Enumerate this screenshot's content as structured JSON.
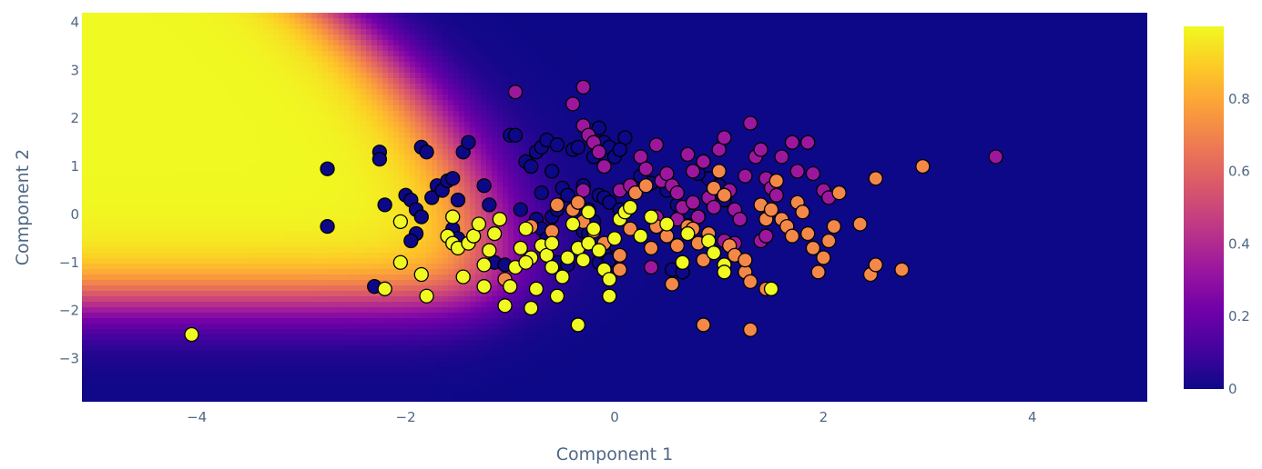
{
  "chart_data": {
    "type": "scatter",
    "title": "",
    "xlabel": "Component 1",
    "ylabel": "Component 2",
    "xlim": [
      -5.1,
      5.1
    ],
    "ylim": [
      -3.9,
      4.2
    ],
    "x_ticks": [
      "−4",
      "−2",
      "0",
      "2",
      "4"
    ],
    "y_ticks": [
      "−3",
      "−2",
      "−1",
      "0",
      "1",
      "2",
      "3",
      "4"
    ],
    "background": {
      "type": "heatmap",
      "description_of_values": "decision probability surface, high in the upper-left, low on the right and bottom",
      "colorscale": [
        "#0d0887",
        "#46039f",
        "#7201a8",
        "#9c179e",
        "#bd3786",
        "#d8576b",
        "#ed7953",
        "#fb9f3a",
        "#fdca26",
        "#f0f921"
      ]
    },
    "colorbar": {
      "range": [
        0,
        1
      ],
      "ticks": [
        "0",
        "0.2",
        "0.4",
        "0.6",
        "0.8"
      ]
    },
    "marker_colors": {
      "class_dark_blue": "#0d0887",
      "class_purple": "#9c179e",
      "class_orange": "#f48849",
      "class_yellow": "#f0f921"
    },
    "series": [
      {
        "class": "dark_blue",
        "color": "#0d0887",
        "points": [
          [
            -2.75,
            0.95
          ],
          [
            -2.75,
            -0.25
          ],
          [
            -2.25,
            1.3
          ],
          [
            -2.25,
            1.15
          ],
          [
            -2.2,
            0.2
          ],
          [
            -2.3,
            -1.5
          ],
          [
            -2.0,
            0.4
          ],
          [
            -1.95,
            0.3
          ],
          [
            -1.9,
            0.1
          ],
          [
            -1.85,
            -0.05
          ],
          [
            -1.9,
            -0.4
          ],
          [
            -1.95,
            -0.55
          ],
          [
            -1.85,
            1.4
          ],
          [
            -1.8,
            1.3
          ],
          [
            -1.7,
            0.6
          ],
          [
            -1.75,
            0.35
          ],
          [
            -1.65,
            0.5
          ],
          [
            -1.6,
            0.7
          ],
          [
            -1.55,
            0.75
          ],
          [
            -1.5,
            0.3
          ],
          [
            -1.45,
            1.3
          ],
          [
            -1.4,
            1.5
          ],
          [
            -1.55,
            -0.3
          ],
          [
            -1.5,
            -0.5
          ],
          [
            -1.25,
            0.6
          ],
          [
            -1.2,
            0.2
          ],
          [
            -1.15,
            -1.0
          ],
          [
            -1.05,
            -1.05
          ],
          [
            -1.0,
            1.65
          ],
          [
            -0.95,
            1.65
          ],
          [
            -0.9,
            0.1
          ],
          [
            -0.85,
            1.1
          ],
          [
            -0.8,
            1.0
          ],
          [
            -0.75,
            1.3
          ],
          [
            -0.7,
            1.4
          ],
          [
            -0.65,
            1.55
          ],
          [
            -0.6,
            0.9
          ],
          [
            -0.7,
            0.45
          ],
          [
            -0.75,
            -0.1
          ],
          [
            -0.7,
            -0.3
          ],
          [
            -0.65,
            -0.5
          ],
          [
            -0.55,
            1.45
          ],
          [
            -0.5,
            0.55
          ],
          [
            -0.45,
            0.4
          ],
          [
            -0.4,
            1.35
          ],
          [
            -0.35,
            1.4
          ],
          [
            -0.3,
            0.6
          ],
          [
            -0.25,
            0.1
          ],
          [
            -0.2,
            1.2
          ],
          [
            -0.15,
            1.8
          ],
          [
            -0.1,
            1.5
          ],
          [
            -0.05,
            1.4
          ],
          [
            0.0,
            1.2
          ],
          [
            -0.15,
            0.4
          ],
          [
            -0.1,
            0.35
          ],
          [
            -0.05,
            0.25
          ],
          [
            0.05,
            0.1
          ],
          [
            -0.3,
            -0.35
          ],
          [
            -0.25,
            -0.4
          ],
          [
            -0.2,
            -0.15
          ],
          [
            -0.15,
            -1.0
          ],
          [
            -0.1,
            -0.8
          ],
          [
            -0.35,
            -0.7
          ],
          [
            -0.55,
            -1.0
          ],
          [
            0.25,
            0.8
          ],
          [
            0.35,
            0.65
          ],
          [
            0.5,
            0.5
          ],
          [
            0.6,
            0.2
          ],
          [
            0.7,
            0.05
          ],
          [
            0.55,
            -1.15
          ],
          [
            0.65,
            -1.2
          ],
          [
            0.1,
            1.6
          ],
          [
            0.05,
            1.35
          ],
          [
            0.0,
            -0.9
          ],
          [
            -0.05,
            -0.95
          ],
          [
            -0.45,
            -1.05
          ],
          [
            -0.6,
            -0.05
          ],
          [
            -0.55,
            0.1
          ],
          [
            0.9,
            0.75
          ],
          [
            1.0,
            0.6
          ],
          [
            0.95,
            0.2
          ],
          [
            1.05,
            0.3
          ],
          [
            0.8,
            0.85
          ]
        ]
      },
      {
        "class": "purple",
        "color": "#9c179e",
        "points": [
          [
            -0.95,
            2.55
          ],
          [
            -0.4,
            2.3
          ],
          [
            -0.3,
            2.65
          ],
          [
            -0.3,
            1.85
          ],
          [
            -0.25,
            1.65
          ],
          [
            -0.2,
            1.5
          ],
          [
            -0.15,
            1.3
          ],
          [
            -0.1,
            1.0
          ],
          [
            0.05,
            0.5
          ],
          [
            0.15,
            0.6
          ],
          [
            0.25,
            1.2
          ],
          [
            0.3,
            0.95
          ],
          [
            0.4,
            1.45
          ],
          [
            0.45,
            0.7
          ],
          [
            0.5,
            0.85
          ],
          [
            0.55,
            0.6
          ],
          [
            0.6,
            0.45
          ],
          [
            0.7,
            1.25
          ],
          [
            0.75,
            0.9
          ],
          [
            0.85,
            1.1
          ],
          [
            0.9,
            0.35
          ],
          [
            0.95,
            0.15
          ],
          [
            1.0,
            1.35
          ],
          [
            1.05,
            1.6
          ],
          [
            1.1,
            0.5
          ],
          [
            1.15,
            0.1
          ],
          [
            1.2,
            -0.1
          ],
          [
            1.25,
            0.8
          ],
          [
            1.3,
            1.9
          ],
          [
            1.35,
            1.2
          ],
          [
            1.4,
            1.35
          ],
          [
            1.45,
            0.75
          ],
          [
            1.5,
            0.55
          ],
          [
            1.55,
            0.4
          ],
          [
            1.6,
            1.2
          ],
          [
            1.7,
            1.5
          ],
          [
            1.75,
            0.9
          ],
          [
            1.85,
            1.5
          ],
          [
            1.9,
            0.85
          ],
          [
            2.0,
            0.5
          ],
          [
            2.05,
            0.35
          ],
          [
            1.4,
            -0.55
          ],
          [
            1.45,
            -0.45
          ],
          [
            1.05,
            -0.55
          ],
          [
            0.35,
            -1.1
          ],
          [
            0.4,
            -0.05
          ],
          [
            0.6,
            -0.1
          ],
          [
            0.8,
            -0.05
          ],
          [
            3.65,
            1.2
          ],
          [
            -0.3,
            0.5
          ],
          [
            0.65,
            0.15
          ],
          [
            0.75,
            0.25
          ],
          [
            1.15,
            -0.6
          ]
        ]
      },
      {
        "class": "orange",
        "color": "#f48849",
        "points": [
          [
            -1.05,
            -1.35
          ],
          [
            -0.8,
            -0.25
          ],
          [
            -0.6,
            -0.35
          ],
          [
            -0.55,
            0.2
          ],
          [
            -0.4,
            0.1
          ],
          [
            -0.35,
            0.25
          ],
          [
            -0.3,
            -0.15
          ],
          [
            -0.2,
            -0.35
          ],
          [
            -0.1,
            -0.6
          ],
          [
            0.05,
            -0.85
          ],
          [
            0.05,
            -1.15
          ],
          [
            0.15,
            -0.3
          ],
          [
            0.2,
            0.45
          ],
          [
            0.35,
            -0.7
          ],
          [
            0.4,
            -0.25
          ],
          [
            0.5,
            -0.45
          ],
          [
            0.55,
            -1.45
          ],
          [
            0.6,
            -0.65
          ],
          [
            0.65,
            -1.0
          ],
          [
            0.7,
            -0.25
          ],
          [
            0.8,
            -0.6
          ],
          [
            0.85,
            -0.95
          ],
          [
            0.85,
            -2.3
          ],
          [
            0.9,
            -0.4
          ],
          [
            0.95,
            0.55
          ],
          [
            1.0,
            0.9
          ],
          [
            1.05,
            0.4
          ],
          [
            1.1,
            -0.65
          ],
          [
            1.15,
            -0.85
          ],
          [
            1.25,
            -1.2
          ],
          [
            1.3,
            -1.4
          ],
          [
            1.3,
            -2.4
          ],
          [
            1.4,
            0.2
          ],
          [
            1.45,
            -0.1
          ],
          [
            1.5,
            0.1
          ],
          [
            1.55,
            0.7
          ],
          [
            1.6,
            -0.1
          ],
          [
            1.65,
            -0.25
          ],
          [
            1.7,
            -0.45
          ],
          [
            1.75,
            0.25
          ],
          [
            1.8,
            0.05
          ],
          [
            1.85,
            -0.4
          ],
          [
            1.9,
            -0.7
          ],
          [
            1.95,
            -1.2
          ],
          [
            2.0,
            -0.9
          ],
          [
            2.05,
            -0.55
          ],
          [
            2.1,
            -0.25
          ],
          [
            2.15,
            0.45
          ],
          [
            2.35,
            -0.2
          ],
          [
            2.45,
            -1.25
          ],
          [
            2.5,
            -1.05
          ],
          [
            2.5,
            0.75
          ],
          [
            2.75,
            -1.15
          ],
          [
            2.95,
            1.0
          ],
          [
            1.45,
            -1.55
          ],
          [
            1.25,
            -0.95
          ],
          [
            0.75,
            -0.3
          ],
          [
            0.3,
            0.6
          ]
        ]
      },
      {
        "class": "yellow",
        "color": "#f0f921",
        "points": [
          [
            -4.05,
            -2.5
          ],
          [
            -2.2,
            -1.55
          ],
          [
            -2.05,
            -1.0
          ],
          [
            -2.05,
            -0.15
          ],
          [
            -1.85,
            -1.25
          ],
          [
            -1.8,
            -1.7
          ],
          [
            -1.6,
            -0.45
          ],
          [
            -1.55,
            -0.6
          ],
          [
            -1.5,
            -0.7
          ],
          [
            -1.55,
            -0.05
          ],
          [
            -1.45,
            -1.3
          ],
          [
            -1.4,
            -0.6
          ],
          [
            -1.35,
            -0.45
          ],
          [
            -1.3,
            -0.2
          ],
          [
            -1.25,
            -1.5
          ],
          [
            -1.25,
            -1.05
          ],
          [
            -1.2,
            -0.75
          ],
          [
            -1.15,
            -0.4
          ],
          [
            -1.1,
            -0.1
          ],
          [
            -1.05,
            -1.9
          ],
          [
            -1.0,
            -1.5
          ],
          [
            -0.95,
            -1.1
          ],
          [
            -0.9,
            -0.7
          ],
          [
            -0.85,
            -0.3
          ],
          [
            -0.8,
            -0.9
          ],
          [
            -0.8,
            -1.95
          ],
          [
            -0.75,
            -1.55
          ],
          [
            -0.7,
            -0.65
          ],
          [
            -0.65,
            -0.85
          ],
          [
            -0.6,
            -1.1
          ],
          [
            -0.55,
            -1.7
          ],
          [
            -0.5,
            -1.3
          ],
          [
            -0.45,
            -0.9
          ],
          [
            -0.4,
            -0.2
          ],
          [
            -0.35,
            -0.7
          ],
          [
            -0.35,
            -2.3
          ],
          [
            -0.3,
            -0.95
          ],
          [
            -0.25,
            -0.6
          ],
          [
            -0.2,
            -0.3
          ],
          [
            -0.15,
            -0.75
          ],
          [
            -0.1,
            -1.15
          ],
          [
            -0.05,
            -1.35
          ],
          [
            -0.05,
            -1.7
          ],
          [
            0.0,
            -0.5
          ],
          [
            0.05,
            -0.1
          ],
          [
            0.1,
            0.05
          ],
          [
            0.15,
            0.15
          ],
          [
            0.25,
            -0.45
          ],
          [
            0.35,
            -0.05
          ],
          [
            0.5,
            -0.2
          ],
          [
            0.65,
            -1.0
          ],
          [
            0.7,
            -0.4
          ],
          [
            0.9,
            -0.55
          ],
          [
            0.95,
            -0.8
          ],
          [
            1.05,
            -1.05
          ],
          [
            1.05,
            -1.2
          ],
          [
            1.5,
            -1.55
          ],
          [
            -0.85,
            -1.0
          ],
          [
            -0.6,
            -0.6
          ],
          [
            -0.25,
            0.05
          ]
        ]
      }
    ]
  }
}
